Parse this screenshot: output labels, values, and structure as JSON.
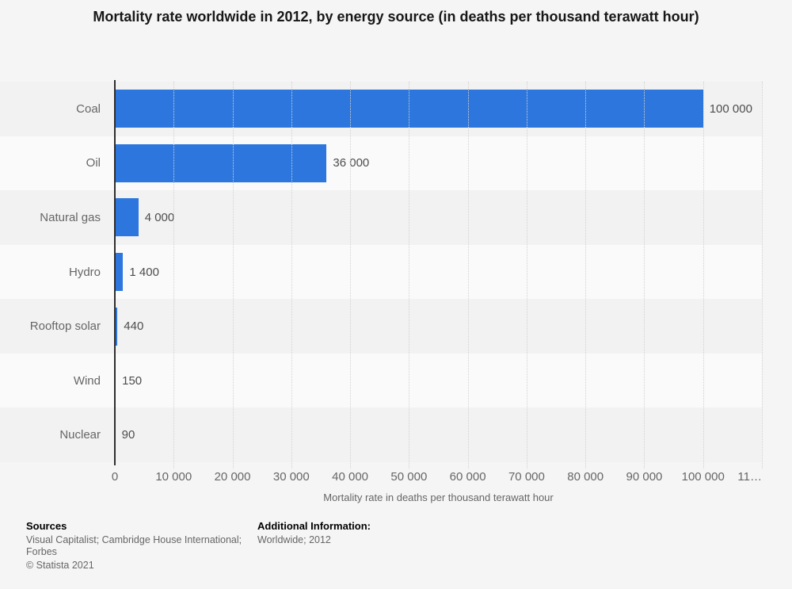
{
  "title": "Mortality rate worldwide in 2012, by energy source (in deaths per thousand terawatt hour)",
  "chart_data": {
    "type": "bar",
    "orientation": "horizontal",
    "title": "Mortality rate worldwide in 2012, by energy source (in deaths per thousand terawatt hour)",
    "categories": [
      "Coal",
      "Oil",
      "Natural gas",
      "Hydro",
      "Rooftop solar",
      "Wind",
      "Nuclear"
    ],
    "values": [
      100000,
      36000,
      4000,
      1400,
      440,
      150,
      90
    ],
    "value_labels": [
      "100 000",
      "36 000",
      "4 000",
      "1 400",
      "440",
      "150",
      "90"
    ],
    "xlabel": "Mortality rate in deaths per thousand terawatt hour",
    "ylabel": "",
    "xlim": [
      0,
      110000
    ],
    "tick_interval": 10000,
    "x_tick_labels": [
      "0",
      "10 000",
      "20 000",
      "30 000",
      "40 000",
      "50 000",
      "60 000",
      "70 000",
      "80 000",
      "90 000",
      "100 000",
      "11…"
    ],
    "grid": "vertical-dotted",
    "legend": "none",
    "bar_color": "#2c76dd",
    "stripe_colors": [
      "#f2f2f2",
      "#fafafa"
    ],
    "axis_line_color": "#2e2e2e",
    "gridline_color": "#d2d2d2",
    "label_color": "#666666",
    "value_label_color": "#4d4d4d"
  },
  "footer": {
    "sources_title": "Sources",
    "sources_text": "Visual Capitalist; Cambridge House International; Forbes",
    "copyright": "© Statista 2021",
    "additional_title": "Additional Information:",
    "additional_text": "Worldwide; 2012"
  }
}
